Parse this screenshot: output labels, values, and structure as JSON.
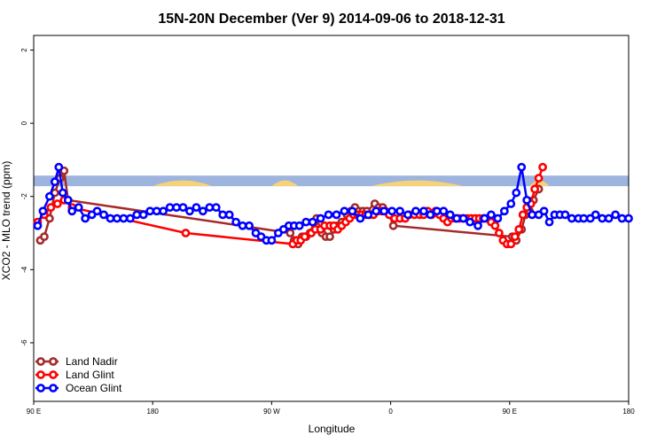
{
  "chart_data": {
    "type": "line",
    "title": "15N-20N December (Ver 9)   2014-09-06 to 2018-12-31",
    "xlabel": "Longitude",
    "ylabel": "XCO2 - MLO trend (ppm)",
    "xlim": [
      0,
      450
    ],
    "ylim": [
      -7.6,
      2.4
    ],
    "xticks": [
      0,
      90,
      180,
      270,
      360,
      450
    ],
    "xtick_labels": [
      "90 E",
      "180",
      "90 W",
      "0",
      "90 E",
      "180"
    ],
    "yticks": [
      2,
      0,
      -2,
      -4,
      -6
    ],
    "ytick_labels": [
      "2",
      "0",
      "-2",
      "-4",
      "-6"
    ],
    "grid": false,
    "legend_position": "bottom-left",
    "background_band": {
      "y_range": [
        -1.72,
        -1.43
      ],
      "ocean_color": "#9db4de",
      "land_color": "#f5d37a"
    },
    "series": [
      {
        "name": "Land Nadir",
        "color": "#a52a2a",
        "x": [
          5,
          8,
          12,
          16,
          20,
          23,
          26,
          194,
          197,
          200,
          203,
          206,
          209,
          212,
          214,
          218,
          221,
          224,
          227,
          230,
          233,
          237,
          240,
          243,
          246,
          249,
          252,
          258,
          261,
          264,
          269,
          272,
          362,
          365,
          369,
          372,
          375,
          378,
          382
        ],
        "y": [
          -3.2,
          -3.1,
          -2.6,
          -1.9,
          -1.5,
          -1.3,
          -2.1,
          -3.0,
          -3.2,
          -3.3,
          -3.1,
          -3.1,
          -3.0,
          -2.7,
          -2.6,
          -3.0,
          -3.1,
          -3.1,
          -2.9,
          -2.8,
          -2.7,
          -2.5,
          -2.4,
          -2.3,
          -2.4,
          -2.4,
          -2.4,
          -2.2,
          -2.3,
          -2.3,
          -2.5,
          -2.8,
          -3.1,
          -3.2,
          -2.9,
          -2.5,
          -2.4,
          -2.1,
          -1.8
        ]
      },
      {
        "name": "Land Glint",
        "color": "#ff0000",
        "x": [
          3,
          8,
          13,
          18,
          23,
          29,
          115,
          196,
          199,
          202,
          205,
          210,
          213,
          217,
          220,
          224,
          227,
          230,
          233,
          236,
          239,
          242,
          245,
          248,
          251,
          254,
          257,
          260,
          263,
          266,
          269,
          273,
          277,
          281,
          284,
          288,
          292,
          295,
          298,
          301,
          304,
          307,
          310,
          313,
          316,
          319,
          322,
          325,
          328,
          331,
          334,
          337,
          340,
          343,
          346,
          349,
          352,
          355,
          358,
          361,
          364,
          367,
          370,
          373,
          376,
          379,
          382,
          385
        ],
        "y": [
          -2.7,
          -2.5,
          -2.3,
          -2.2,
          -2.1,
          -2.3,
          -3.0,
          -3.3,
          -3.2,
          -3.2,
          -3.1,
          -3.0,
          -2.9,
          -2.9,
          -2.8,
          -2.8,
          -2.8,
          -2.9,
          -2.8,
          -2.7,
          -2.6,
          -2.5,
          -2.5,
          -2.5,
          -2.5,
          -2.5,
          -2.5,
          -2.4,
          -2.4,
          -2.4,
          -2.5,
          -2.6,
          -2.6,
          -2.6,
          -2.5,
          -2.5,
          -2.5,
          -2.5,
          -2.4,
          -2.5,
          -2.4,
          -2.5,
          -2.6,
          -2.7,
          -2.6,
          -2.6,
          -2.6,
          -2.6,
          -2.6,
          -2.6,
          -2.6,
          -2.6,
          -2.6,
          -2.6,
          -2.7,
          -2.8,
          -3.0,
          -3.2,
          -3.3,
          -3.3,
          -3.1,
          -2.9,
          -2.5,
          -2.3,
          -2.2,
          -1.8,
          -1.5,
          -1.2
        ]
      },
      {
        "name": "Ocean Glint",
        "color": "#0000ff",
        "x": [
          3,
          7,
          12,
          16,
          19,
          22,
          26,
          29,
          34,
          39,
          44,
          48,
          53,
          58,
          63,
          68,
          73,
          78,
          83,
          88,
          93,
          98,
          103,
          108,
          113,
          118,
          123,
          128,
          133,
          138,
          143,
          148,
          153,
          158,
          163,
          168,
          172,
          176,
          180,
          185,
          189,
          193,
          197,
          201,
          206,
          211,
          217,
          223,
          229,
          235,
          241,
          247,
          253,
          259,
          265,
          271,
          277,
          283,
          289,
          295,
          300,
          305,
          310,
          315,
          320,
          325,
          330,
          336,
          341,
          346,
          351,
          356,
          361,
          365,
          369,
          373,
          377,
          382,
          386,
          390,
          394,
          398,
          402,
          407,
          412,
          416,
          421,
          425,
          430,
          435,
          440,
          445,
          450
        ],
        "y": [
          -2.8,
          -2.4,
          -2.0,
          -1.6,
          -1.2,
          -1.9,
          -2.1,
          -2.4,
          -2.3,
          -2.6,
          -2.5,
          -2.4,
          -2.5,
          -2.6,
          -2.6,
          -2.6,
          -2.6,
          -2.5,
          -2.5,
          -2.4,
          -2.4,
          -2.4,
          -2.3,
          -2.3,
          -2.3,
          -2.4,
          -2.3,
          -2.4,
          -2.3,
          -2.3,
          -2.5,
          -2.5,
          -2.7,
          -2.8,
          -2.8,
          -3.0,
          -3.1,
          -3.2,
          -3.2,
          -3.0,
          -2.9,
          -2.8,
          -2.8,
          -2.8,
          -2.7,
          -2.7,
          -2.6,
          -2.5,
          -2.5,
          -2.4,
          -2.4,
          -2.6,
          -2.5,
          -2.4,
          -2.4,
          -2.4,
          -2.4,
          -2.5,
          -2.4,
          -2.4,
          -2.5,
          -2.4,
          -2.4,
          -2.5,
          -2.6,
          -2.6,
          -2.7,
          -2.8,
          -2.6,
          -2.5,
          -2.6,
          -2.4,
          -2.2,
          -1.9,
          -1.2,
          -2.1,
          -2.5,
          -2.5,
          -2.4,
          -2.7,
          -2.5,
          -2.5,
          -2.5,
          -2.6,
          -2.6,
          -2.6,
          -2.6,
          -2.5,
          -2.6,
          -2.6,
          -2.5,
          -2.6,
          -2.6
        ]
      }
    ]
  }
}
